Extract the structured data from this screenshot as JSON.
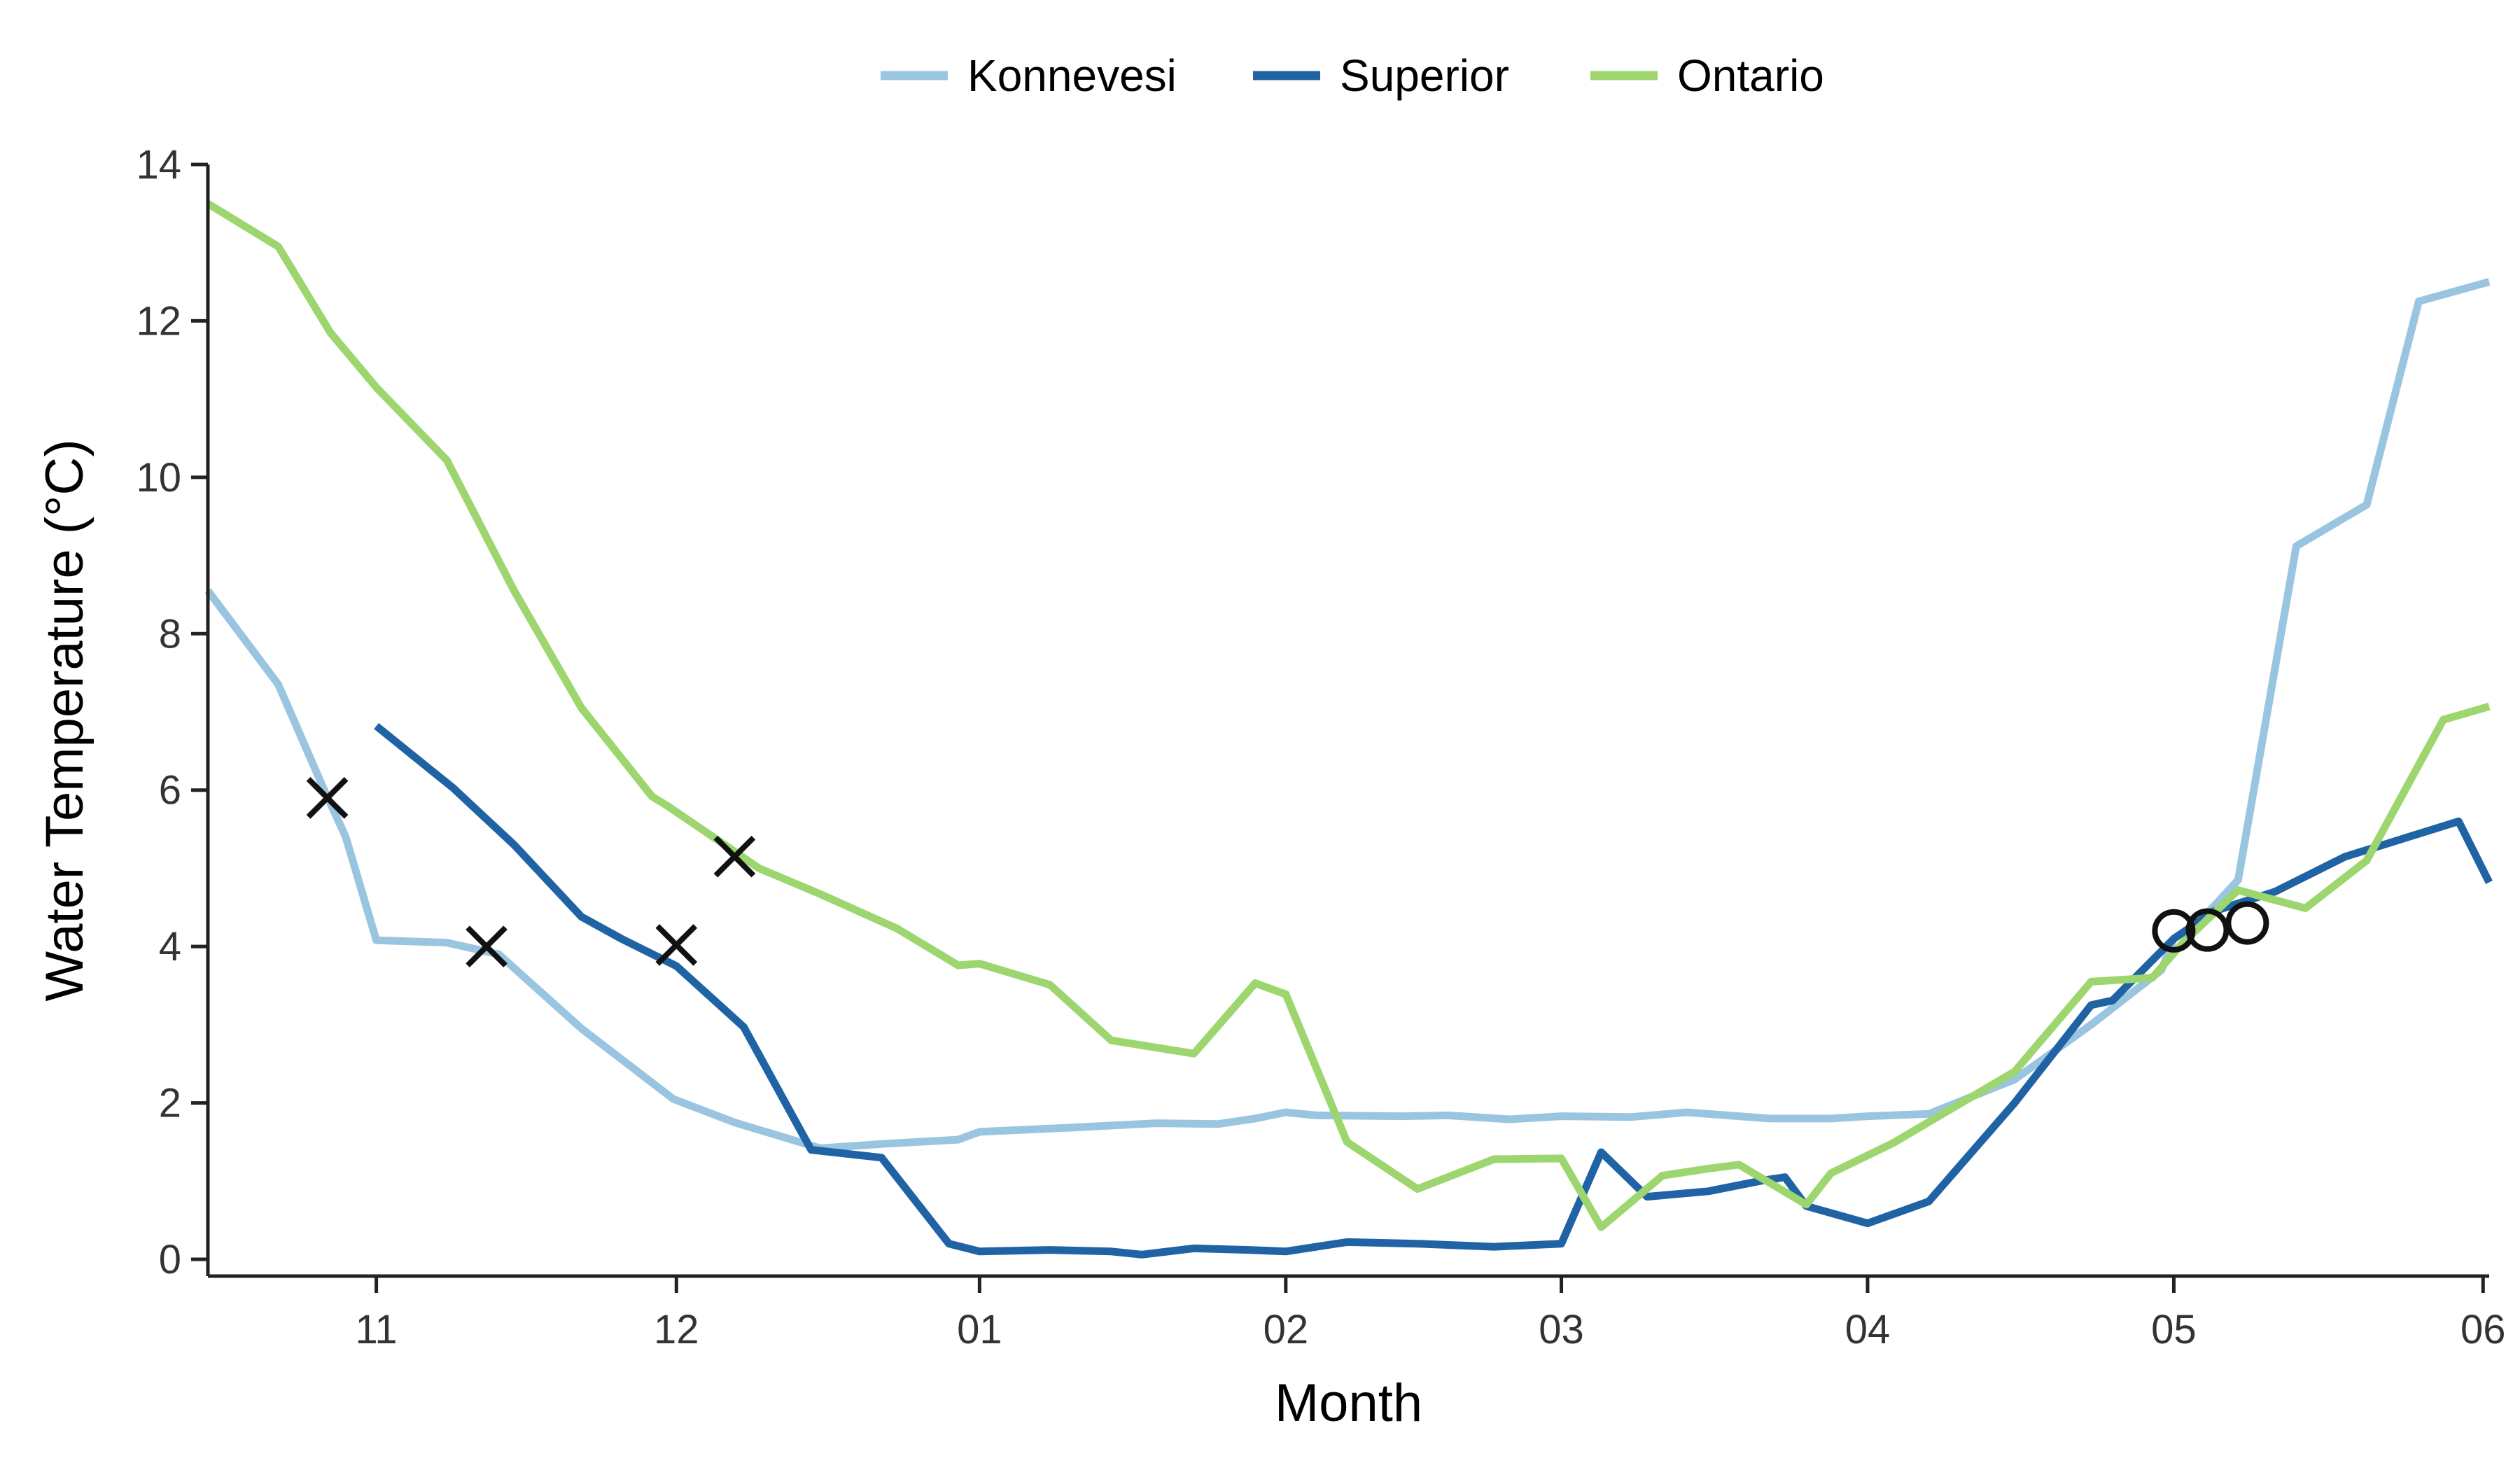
{
  "chart_data": {
    "type": "line",
    "xlabel": "Month",
    "ylabel": "Water Temperature (°C)",
    "xlim": [
      0.0,
      7.45
    ],
    "ylim": [
      0,
      14
    ],
    "x_ticks": [
      {
        "x": 0.55,
        "label": "11"
      },
      {
        "x": 1.53,
        "label": "12"
      },
      {
        "x": 2.52,
        "label": "01"
      },
      {
        "x": 3.52,
        "label": "02"
      },
      {
        "x": 4.42,
        "label": "03"
      },
      {
        "x": 5.42,
        "label": "04"
      },
      {
        "x": 6.42,
        "label": "05"
      },
      {
        "x": 7.43,
        "label": "06"
      }
    ],
    "y_ticks": [
      0,
      2,
      4,
      6,
      8,
      10,
      12,
      14
    ],
    "grid": false,
    "legend_position": "top-center",
    "series": [
      {
        "name": "Konnevesi",
        "color": "#9ac5e0",
        "points": [
          [
            0.0,
            8.55
          ],
          [
            0.23,
            7.35
          ],
          [
            0.38,
            6.0
          ],
          [
            0.45,
            5.4
          ],
          [
            0.55,
            4.08
          ],
          [
            0.78,
            4.05
          ],
          [
            0.95,
            3.9
          ],
          [
            1.22,
            2.95
          ],
          [
            1.52,
            2.05
          ],
          [
            1.72,
            1.75
          ],
          [
            2.0,
            1.42
          ],
          [
            2.22,
            1.48
          ],
          [
            2.45,
            1.53
          ],
          [
            2.52,
            1.63
          ],
          [
            2.8,
            1.68
          ],
          [
            3.1,
            1.74
          ],
          [
            3.3,
            1.73
          ],
          [
            3.42,
            1.8
          ],
          [
            3.52,
            1.88
          ],
          [
            3.62,
            1.84
          ],
          [
            3.9,
            1.83
          ],
          [
            4.05,
            1.84
          ],
          [
            4.25,
            1.79
          ],
          [
            4.42,
            1.83
          ],
          [
            4.65,
            1.82
          ],
          [
            4.83,
            1.88
          ],
          [
            5.0,
            1.83
          ],
          [
            5.1,
            1.8
          ],
          [
            5.3,
            1.8
          ],
          [
            5.42,
            1.83
          ],
          [
            5.62,
            1.86
          ],
          [
            5.9,
            2.3
          ],
          [
            6.15,
            3.0
          ],
          [
            6.38,
            3.7
          ],
          [
            6.42,
            4.1
          ],
          [
            6.5,
            4.3
          ],
          [
            6.63,
            4.85
          ],
          [
            6.82,
            9.12
          ],
          [
            7.05,
            9.65
          ],
          [
            7.22,
            12.25
          ],
          [
            7.45,
            12.5
          ]
        ]
      },
      {
        "name": "Superior",
        "color": "#1f63a5",
        "points": [
          [
            0.55,
            6.82
          ],
          [
            0.8,
            6.03
          ],
          [
            1.0,
            5.3
          ],
          [
            1.22,
            4.38
          ],
          [
            1.35,
            4.1
          ],
          [
            1.53,
            3.75
          ],
          [
            1.75,
            2.97
          ],
          [
            1.97,
            1.4
          ],
          [
            2.2,
            1.3
          ],
          [
            2.42,
            0.2
          ],
          [
            2.52,
            0.1
          ],
          [
            2.75,
            0.12
          ],
          [
            2.95,
            0.1
          ],
          [
            3.05,
            0.06
          ],
          [
            3.22,
            0.14
          ],
          [
            3.4,
            0.12
          ],
          [
            3.52,
            0.1
          ],
          [
            3.72,
            0.22
          ],
          [
            3.95,
            0.2
          ],
          [
            4.2,
            0.16
          ],
          [
            4.42,
            0.2
          ],
          [
            4.55,
            1.37
          ],
          [
            4.7,
            0.8
          ],
          [
            4.9,
            0.87
          ],
          [
            5.08,
            1.01
          ],
          [
            5.15,
            1.05
          ],
          [
            5.22,
            0.68
          ],
          [
            5.42,
            0.46
          ],
          [
            5.62,
            0.74
          ],
          [
            5.9,
            2.0
          ],
          [
            6.15,
            3.25
          ],
          [
            6.22,
            3.31
          ],
          [
            6.42,
            4.1
          ],
          [
            6.55,
            4.45
          ],
          [
            6.75,
            4.7
          ],
          [
            6.98,
            5.15
          ],
          [
            7.35,
            5.6
          ],
          [
            7.45,
            4.82
          ]
        ]
      },
      {
        "name": "Ontario",
        "color": "#9dd66f",
        "points": [
          [
            0.0,
            13.5
          ],
          [
            0.23,
            12.95
          ],
          [
            0.4,
            11.85
          ],
          [
            0.55,
            11.15
          ],
          [
            0.78,
            10.22
          ],
          [
            1.0,
            8.55
          ],
          [
            1.22,
            7.05
          ],
          [
            1.45,
            5.92
          ],
          [
            1.5,
            5.8
          ],
          [
            1.65,
            5.4
          ],
          [
            1.8,
            5.0
          ],
          [
            2.0,
            4.67
          ],
          [
            2.25,
            4.23
          ],
          [
            2.45,
            3.76
          ],
          [
            2.52,
            3.78
          ],
          [
            2.75,
            3.51
          ],
          [
            2.95,
            2.8
          ],
          [
            3.22,
            2.63
          ],
          [
            3.42,
            3.53
          ],
          [
            3.52,
            3.39
          ],
          [
            3.72,
            1.5
          ],
          [
            3.95,
            0.9
          ],
          [
            4.2,
            1.28
          ],
          [
            4.42,
            1.29
          ],
          [
            4.55,
            0.41
          ],
          [
            4.75,
            1.07
          ],
          [
            4.9,
            1.16
          ],
          [
            5.0,
            1.21
          ],
          [
            5.22,
            0.7
          ],
          [
            5.3,
            1.1
          ],
          [
            5.5,
            1.48
          ],
          [
            5.9,
            2.4
          ],
          [
            6.15,
            3.55
          ],
          [
            6.35,
            3.6
          ],
          [
            6.45,
            4.05
          ],
          [
            6.63,
            4.72
          ],
          [
            6.85,
            4.49
          ],
          [
            7.05,
            5.1
          ],
          [
            7.3,
            6.9
          ],
          [
            7.45,
            7.07
          ]
        ]
      }
    ],
    "markers": [
      {
        "shape": "x",
        "x": 0.39,
        "y": 5.9
      },
      {
        "shape": "x",
        "x": 0.91,
        "y": 4.0
      },
      {
        "shape": "x",
        "x": 1.53,
        "y": 4.02
      },
      {
        "shape": "x",
        "x": 1.72,
        "y": 5.15
      },
      {
        "shape": "o",
        "x": 6.42,
        "y": 4.2
      },
      {
        "shape": "o",
        "x": 6.53,
        "y": 4.21
      },
      {
        "shape": "o",
        "x": 6.66,
        "y": 4.3
      }
    ]
  }
}
